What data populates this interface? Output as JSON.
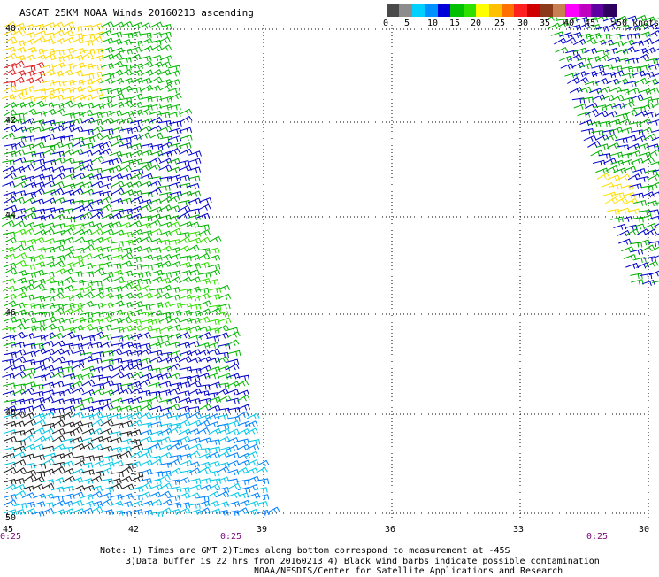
{
  "title": "ASCAT 25KM NOAA Winds 20160213 ascending",
  "legend": {
    "colors": [
      "#4a4a4a",
      "#8c8c8c",
      "#00d0ff",
      "#0090ff",
      "#0000d8",
      "#00c000",
      "#30e000",
      "#ffff00",
      "#ffc000",
      "#ff7000",
      "#ff2020",
      "#d00000",
      "#8b3a1a",
      "#c88050",
      "#ff00ff",
      "#c000c0",
      "#6000a0",
      "#300060"
    ],
    "labels": [
      "0",
      "5",
      "10",
      "15",
      "20",
      "25",
      "30",
      "35",
      "40",
      "45",
      ">50 knots"
    ]
  },
  "axes": {
    "lat_labels": [
      "40",
      "42",
      "44",
      "46",
      "48",
      "50"
    ],
    "lon_labels": [
      "45",
      "42",
      "39",
      "36",
      "33",
      "30"
    ],
    "time_labels": [
      "0:25",
      "0:25",
      "0:25"
    ]
  },
  "notes": [
    "Note: 1) Times are GMT 2)Times along bottom correspond to measurement at -45S",
    "3)Data buffer is 22 hrs from 20160213 4) Black wind barbs indicate possible contamination",
    "NOAA/NESDIS/Center for Satellite Applications and Research"
  ]
}
